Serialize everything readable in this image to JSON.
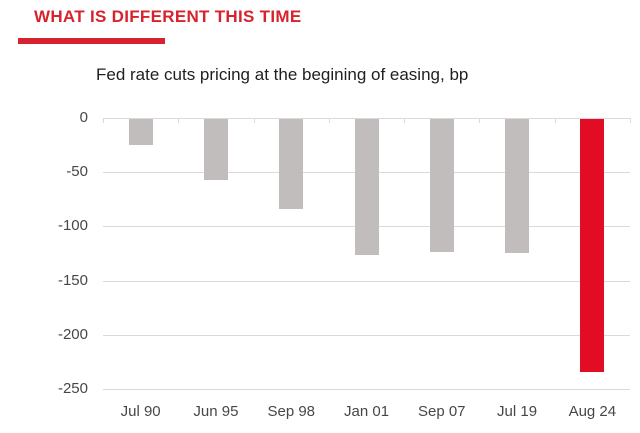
{
  "header": {
    "title": "WHAT IS DIFFERENT THIS TIME",
    "accent_color": "#d7232e"
  },
  "chart_data": {
    "type": "bar",
    "title": "Fed rate cuts pricing at the begining of easing, bp",
    "categories": [
      "Jul 90",
      "Jun 95",
      "Sep 98",
      "Jan 01",
      "Sep 07",
      "Jul 19",
      "Aug 24"
    ],
    "values": [
      -24,
      -56,
      -83,
      -125,
      -123,
      -124,
      -233
    ],
    "unit": "bp",
    "ylim": [
      -250,
      0
    ],
    "yticks": [
      0,
      -50,
      -100,
      -150,
      -200,
      -250
    ],
    "grid": true,
    "legend": false,
    "highlight_index": 6,
    "colors": {
      "bar_default": "#c0bdbc",
      "bar_highlight": "#e30c25",
      "gridline": "#dcdad9",
      "axis_text": "#474747",
      "title_text": "#1f1f1f"
    }
  }
}
